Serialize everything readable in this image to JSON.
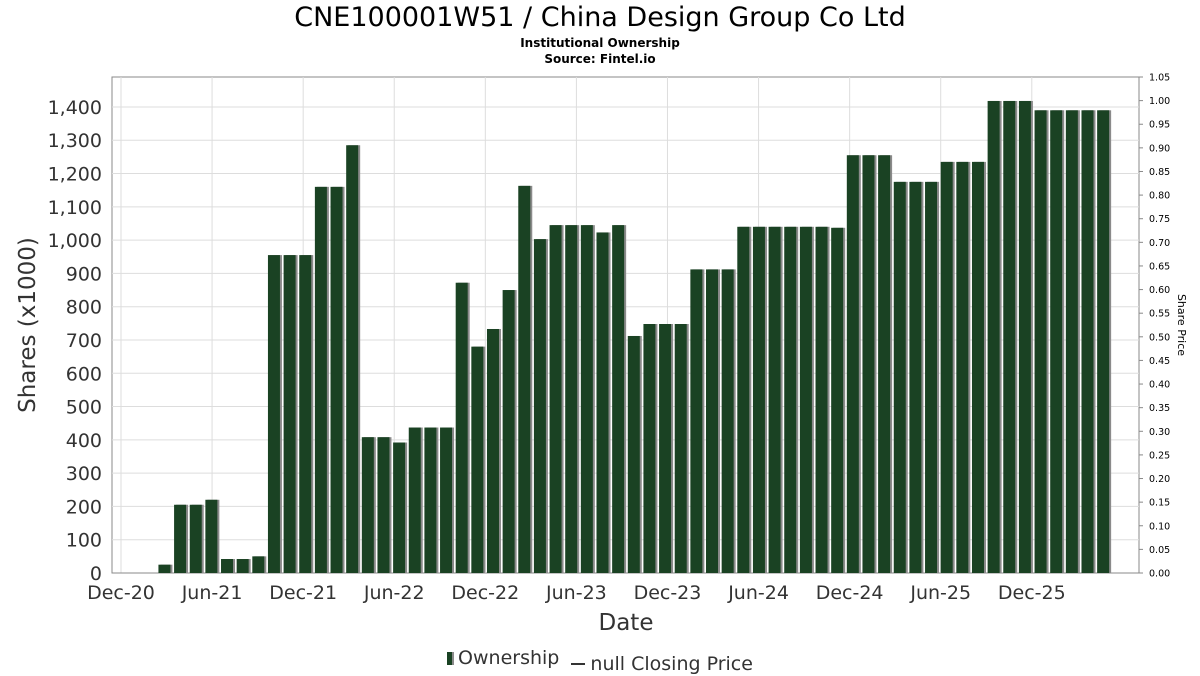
{
  "chart_data": {
    "type": "bar",
    "title": "CNE100001W51 / China Design Group Co Ltd",
    "subtitle": "Institutional Ownership",
    "source": "Source: Fintel.io",
    "xlabel": "Date",
    "ylabel": "Shares (x1000)",
    "y2label": "Share Price",
    "ylim": [
      0,
      1490
    ],
    "y2lim": [
      0,
      1.05
    ],
    "yticks": [
      0,
      100,
      200,
      300,
      400,
      500,
      600,
      700,
      800,
      900,
      1000,
      1100,
      1200,
      1300,
      1400
    ],
    "ytick_labels": [
      "0",
      "100",
      "200",
      "300",
      "400",
      "500",
      "600",
      "700",
      "800",
      "900",
      "1,000",
      "1,100",
      "1,200",
      "1,300",
      "1,400"
    ],
    "y2ticks": [
      "0.00",
      "0.05",
      "0.10",
      "0.15",
      "0.20",
      "0.25",
      "0.30",
      "0.35",
      "0.40",
      "0.45",
      "0.50",
      "0.55",
      "0.60",
      "0.65",
      "0.70",
      "0.75",
      "0.80",
      "0.85",
      "0.90",
      "0.95",
      "1.00",
      "1.05"
    ],
    "xticks": [
      "Dec-20",
      "Jun-21",
      "Dec-21",
      "Jun-22",
      "Dec-22",
      "Jun-23",
      "Dec-23",
      "Jun-24",
      "Dec-24",
      "Jun-25",
      "Dec-25"
    ],
    "grid": true,
    "legend_position": "bottom",
    "colors": {
      "bar": "#1a4223",
      "bar_shadow": "#8a8a8a",
      "grid": "#dddddd"
    },
    "series": [
      {
        "name": "Ownership",
        "values": [
          0,
          0,
          0,
          25,
          205,
          205,
          220,
          42,
          42,
          50,
          955,
          955,
          955,
          1160,
          1160,
          1285,
          408,
          408,
          392,
          437,
          437,
          437,
          872,
          680,
          733,
          850,
          1163,
          1003,
          1045,
          1045,
          1045,
          1023,
          1045,
          712,
          748,
          748,
          748,
          912,
          912,
          912,
          1040,
          1040,
          1040,
          1040,
          1040,
          1040,
          1037,
          1255,
          1255,
          1255,
          1175,
          1175,
          1175,
          1235,
          1235,
          1235,
          1418,
          1418,
          1418,
          1390,
          1390,
          1390,
          1390,
          1390
        ]
      },
      {
        "name": "null Closing Price",
        "values": []
      }
    ]
  }
}
